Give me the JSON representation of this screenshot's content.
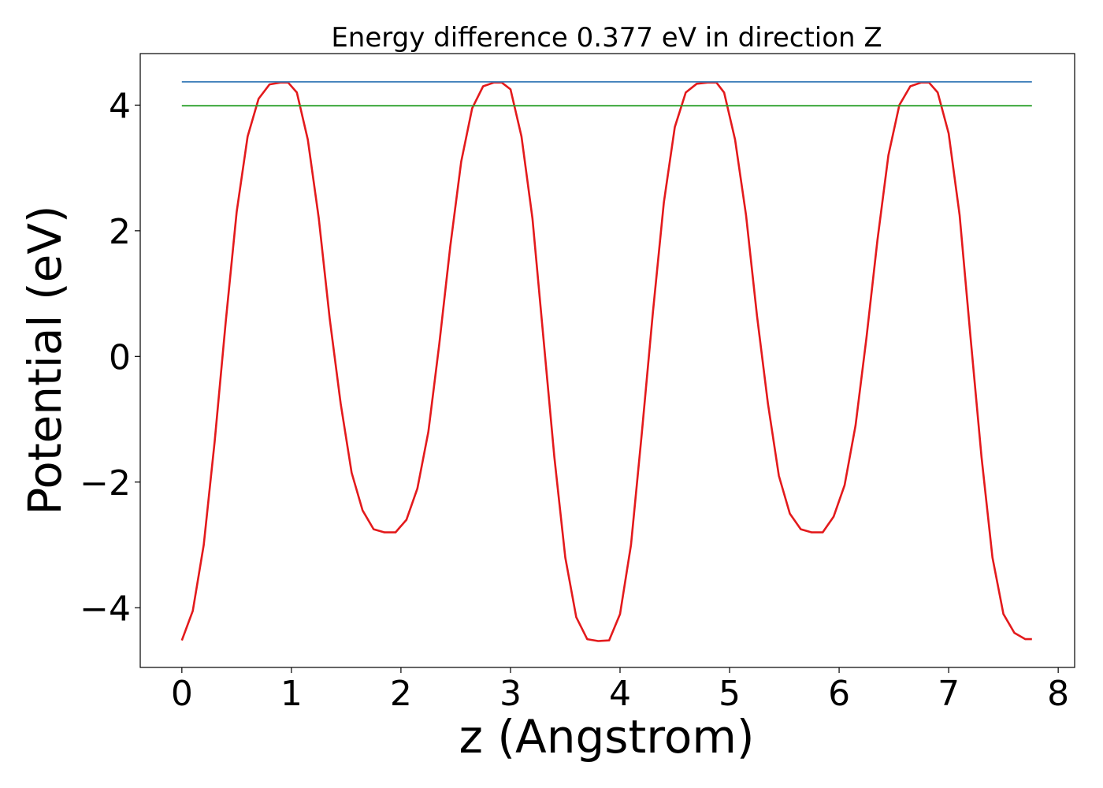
{
  "chart_data": {
    "type": "line",
    "title": "Energy difference 0.377 eV in direction Z",
    "xlabel": "z (Angstrom)",
    "ylabel": "Potential (eV)",
    "xlim": [
      -0.38,
      8.15
    ],
    "ylim": [
      -4.95,
      4.82
    ],
    "xticks": [
      0,
      1,
      2,
      3,
      4,
      5,
      6,
      7,
      8
    ],
    "xtick_labels": [
      "0",
      "1",
      "2",
      "3",
      "4",
      "5",
      "6",
      "7",
      "8"
    ],
    "yticks": [
      -4,
      -2,
      0,
      2,
      4
    ],
    "ytick_labels": [
      "−4",
      "−2",
      "0",
      "2",
      "4"
    ],
    "grid": false,
    "series": [
      {
        "color": "#e31a1c",
        "x": [
          0.0,
          0.1,
          0.2,
          0.3,
          0.4,
          0.5,
          0.6,
          0.7,
          0.8,
          0.9,
          0.97,
          1.05,
          1.15,
          1.25,
          1.35,
          1.45,
          1.55,
          1.65,
          1.75,
          1.85,
          1.95,
          2.05,
          2.15,
          2.25,
          2.35,
          2.45,
          2.55,
          2.65,
          2.75,
          2.85,
          2.92,
          3.0,
          3.1,
          3.2,
          3.3,
          3.4,
          3.5,
          3.6,
          3.7,
          3.8,
          3.9,
          4.0,
          4.1,
          4.2,
          4.3,
          4.4,
          4.5,
          4.6,
          4.7,
          4.8,
          4.88,
          4.95,
          5.05,
          5.15,
          5.25,
          5.35,
          5.45,
          5.55,
          5.65,
          5.75,
          5.85,
          5.95,
          6.05,
          6.15,
          6.25,
          6.35,
          6.45,
          6.55,
          6.65,
          6.75,
          6.82,
          6.9,
          7.0,
          7.1,
          7.2,
          7.3,
          7.4,
          7.5,
          7.6,
          7.7,
          7.76
        ],
        "y": [
          -4.52,
          -4.05,
          -3.0,
          -1.35,
          0.55,
          2.3,
          3.5,
          4.1,
          4.33,
          4.36,
          4.36,
          4.2,
          3.45,
          2.2,
          0.6,
          -0.75,
          -1.85,
          -2.45,
          -2.75,
          -2.8,
          -2.8,
          -2.6,
          -2.1,
          -1.2,
          0.2,
          1.75,
          3.1,
          3.95,
          4.3,
          4.36,
          4.36,
          4.25,
          3.5,
          2.2,
          0.3,
          -1.6,
          -3.2,
          -4.15,
          -4.5,
          -4.53,
          -4.52,
          -4.1,
          -3.0,
          -1.2,
          0.7,
          2.45,
          3.65,
          4.2,
          4.34,
          4.36,
          4.36,
          4.2,
          3.45,
          2.25,
          0.65,
          -0.75,
          -1.9,
          -2.5,
          -2.75,
          -2.8,
          -2.8,
          -2.55,
          -2.05,
          -1.1,
          0.3,
          1.85,
          3.2,
          4.0,
          4.3,
          4.36,
          4.36,
          4.2,
          3.55,
          2.25,
          0.3,
          -1.6,
          -3.2,
          -4.1,
          -4.4,
          -4.5,
          -4.5
        ]
      },
      {
        "color": "#3a7cb8",
        "x": [
          0.0,
          7.76
        ],
        "y": [
          4.37,
          4.37
        ]
      },
      {
        "color": "#2ca02c",
        "x": [
          0.0,
          7.76
        ],
        "y": [
          3.99,
          3.99
        ]
      }
    ]
  }
}
